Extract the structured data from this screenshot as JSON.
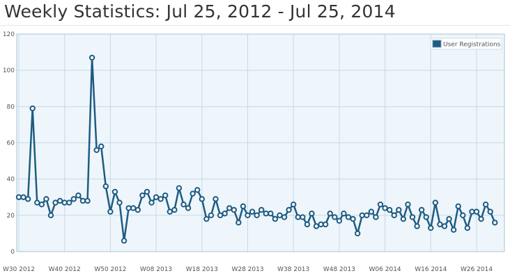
{
  "page": {
    "title": "Weekly Statistics: Jul 25, 2012 - Jul 25, 2014"
  },
  "colors": {
    "series": "#1e5b82",
    "plot_background": "#eef6fb",
    "gridline": "#c5d9e8",
    "point_fill": "#ffffff"
  },
  "chart_data": {
    "type": "line",
    "title": "",
    "xlabel": "",
    "ylabel": "",
    "ylim": [
      0,
      120
    ],
    "yticks": [
      0,
      20,
      40,
      60,
      80,
      100,
      120
    ],
    "grid": true,
    "legend_position": "top-right",
    "xtick_labels": [
      "W30 2012",
      "W40 2012",
      "W50 2012",
      "W08 2013",
      "W18 2013",
      "W28 2013",
      "W38 2013",
      "W48 2013",
      "W06 2014",
      "W16 2014",
      "W26 2014"
    ],
    "x": [
      "W30 2012",
      "W31 2012",
      "W32 2012",
      "W33 2012",
      "W34 2012",
      "W35 2012",
      "W36 2012",
      "W37 2012",
      "W38 2012",
      "W39 2012",
      "W40 2012",
      "W41 2012",
      "W42 2012",
      "W43 2012",
      "W44 2012",
      "W45 2012",
      "W46 2012",
      "W47 2012",
      "W48 2012",
      "W49 2012",
      "W50 2012",
      "W51 2012",
      "W52 2012",
      "W01 2013",
      "W02 2013",
      "W03 2013",
      "W04 2013",
      "W05 2013",
      "W06 2013",
      "W07 2013",
      "W08 2013",
      "W09 2013",
      "W10 2013",
      "W11 2013",
      "W12 2013",
      "W13 2013",
      "W14 2013",
      "W15 2013",
      "W16 2013",
      "W17 2013",
      "W18 2013",
      "W19 2013",
      "W20 2013",
      "W21 2013",
      "W22 2013",
      "W23 2013",
      "W24 2013",
      "W25 2013",
      "W26 2013",
      "W27 2013",
      "W28 2013",
      "W29 2013",
      "W30 2013",
      "W31 2013",
      "W32 2013",
      "W33 2013",
      "W34 2013",
      "W35 2013",
      "W36 2013",
      "W37 2013",
      "W38 2013",
      "W39 2013",
      "W40 2013",
      "W41 2013",
      "W42 2013",
      "W43 2013",
      "W44 2013",
      "W45 2013",
      "W46 2013",
      "W47 2013",
      "W48 2013",
      "W49 2013",
      "W50 2013",
      "W51 2013",
      "W52 2013",
      "W01 2014",
      "W02 2014",
      "W03 2014",
      "W04 2014",
      "W05 2014",
      "W06 2014",
      "W07 2014",
      "W08 2014",
      "W09 2014",
      "W10 2014",
      "W11 2014",
      "W12 2014",
      "W13 2014",
      "W14 2014",
      "W15 2014",
      "W16 2014",
      "W17 2014",
      "W18 2014",
      "W19 2014",
      "W20 2014",
      "W21 2014",
      "W22 2014",
      "W23 2014",
      "W24 2014",
      "W25 2014",
      "W26 2014",
      "W27 2014",
      "W28 2014",
      "W29 2014",
      "W30 2014"
    ],
    "series": [
      {
        "name": "User Registrations",
        "values": [
          30,
          30,
          29,
          79,
          27,
          26,
          29,
          20,
          27,
          28,
          27,
          27,
          29,
          31,
          28,
          28,
          107,
          56,
          58,
          36,
          22,
          33,
          27,
          6,
          24,
          24,
          23,
          31,
          33,
          27,
          30,
          29,
          31,
          22,
          23,
          35,
          26,
          24,
          32,
          34,
          29,
          18,
          20,
          29,
          20,
          21,
          24,
          23,
          16,
          25,
          20,
          22,
          20,
          23,
          21,
          21,
          18,
          20,
          19,
          23,
          26,
          19,
          19,
          15,
          21,
          14,
          15,
          15,
          21,
          19,
          17,
          21,
          19,
          18,
          10,
          20,
          20,
          22,
          19,
          26,
          24,
          23,
          20,
          23,
          18,
          26,
          19,
          14,
          23,
          19,
          13,
          27,
          15,
          14,
          18,
          12,
          25,
          20,
          13,
          22,
          22,
          18,
          26,
          22,
          16
        ]
      }
    ]
  }
}
